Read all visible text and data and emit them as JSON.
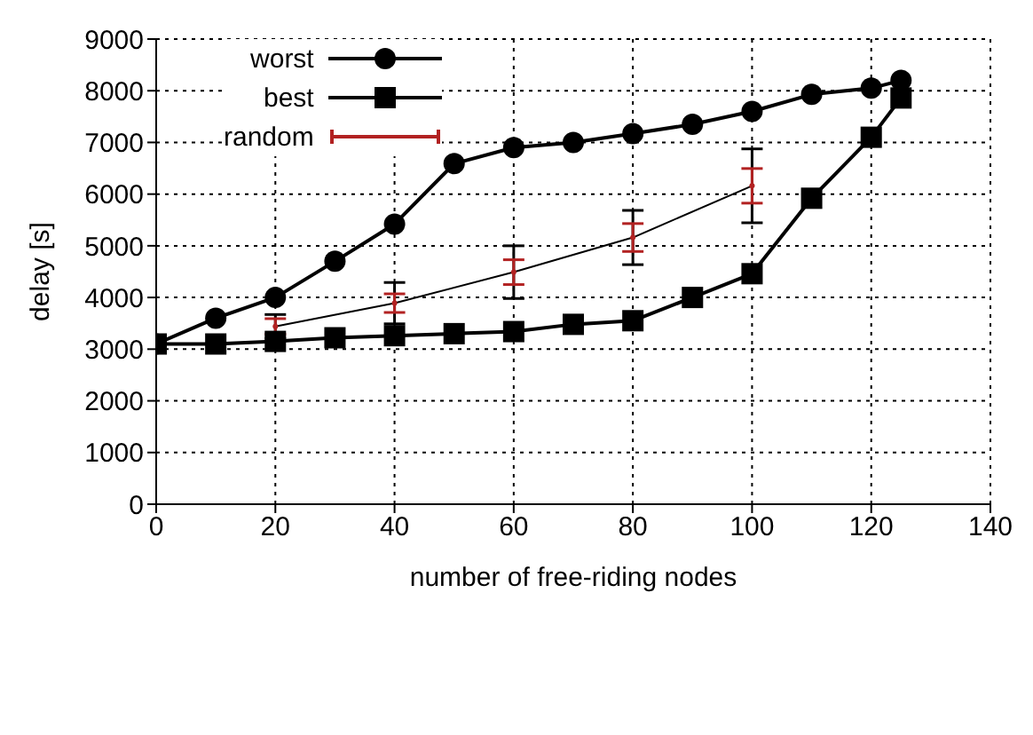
{
  "chart_data": {
    "type": "line",
    "xlabel": "number of free-riding nodes",
    "ylabel": "delay [s]",
    "xlim": [
      0,
      140
    ],
    "xticks": [
      0,
      20,
      40,
      60,
      80,
      100,
      120,
      140
    ],
    "ylim": [
      0,
      9000
    ],
    "yticks": [
      0,
      1000,
      2000,
      3000,
      4000,
      5000,
      6000,
      7000,
      8000,
      9000
    ],
    "grid": true,
    "legend": "top left",
    "line_style": "solid",
    "series": [
      {
        "name": "worst",
        "marker": "circle",
        "color": "#000000",
        "x": [
          0,
          10,
          20,
          30,
          40,
          50,
          60,
          70,
          80,
          90,
          100,
          110,
          120,
          125
        ],
        "values": [
          3100,
          3600,
          4000,
          4700,
          5420,
          6590,
          6900,
          7000,
          7170,
          7350,
          7600,
          7930,
          8050,
          8200
        ]
      },
      {
        "name": "best",
        "marker": "square",
        "color": "#000000",
        "x": [
          0,
          10,
          20,
          30,
          40,
          50,
          60,
          70,
          80,
          90,
          100,
          110,
          120,
          125
        ],
        "values": [
          3100,
          3100,
          3150,
          3220,
          3260,
          3300,
          3340,
          3480,
          3550,
          4000,
          4460,
          5920,
          7100,
          7860
        ]
      },
      {
        "marker": "none",
        "color": "#000000",
        "x": [
          20,
          40,
          60,
          80,
          100
        ],
        "values": [
          3440,
          3890,
          4490,
          5160,
          6160
        ],
        "errors": [
          230,
          400,
          510,
          525,
          715
        ]
      },
      {
        "name": "random",
        "type": "scatter",
        "color": "#b22222",
        "x": [
          20,
          40,
          60,
          80,
          100
        ],
        "values": [
          3440,
          3890,
          4490,
          5160,
          6160
        ],
        "errors": [
          150,
          180,
          240,
          270,
          335
        ]
      }
    ]
  }
}
